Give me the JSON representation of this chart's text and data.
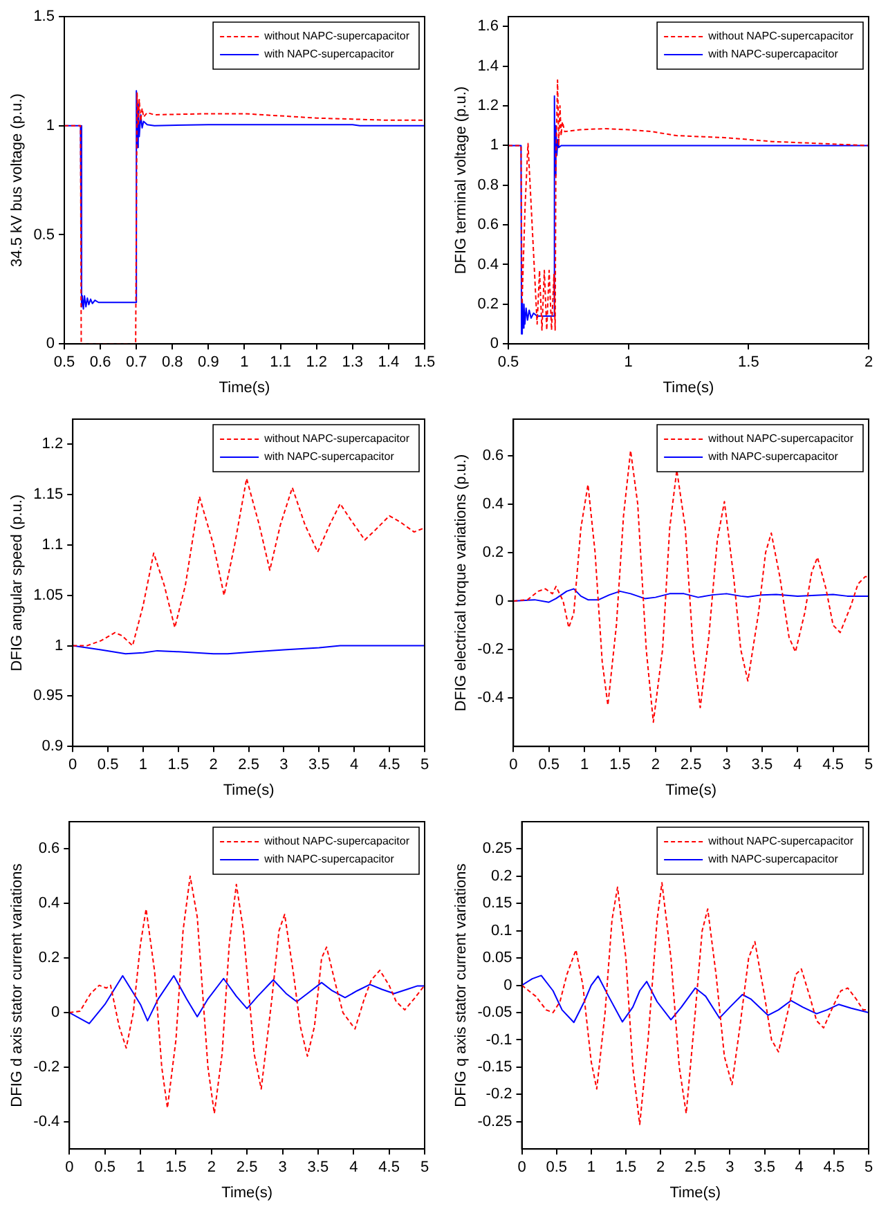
{
  "chart_data": [
    {
      "type": "line",
      "xlabel": "Time(s)",
      "ylabel": "34.5 kV bus voltage (p.u.)",
      "xlim": [
        0.5,
        1.5
      ],
      "xticks": [
        0.5,
        0.6,
        0.7,
        0.8,
        0.9,
        1,
        1.1,
        1.2,
        1.3,
        1.4,
        1.5
      ],
      "ylim": [
        0,
        1.5
      ],
      "yticks": [
        0,
        0.5,
        1,
        1.5
      ],
      "legend": "top right",
      "marker": "none",
      "series": [
        {
          "name": "without NAPC-supercapacitor",
          "color": "#ff0000",
          "line_style": "dashed",
          "x": [
            0.5,
            0.545,
            0.547,
            0.698,
            0.702,
            0.705,
            0.708,
            0.712,
            0.716,
            0.72,
            0.73,
            0.75,
            0.9,
            1.0,
            1.1,
            1.2,
            1.3,
            1.4,
            1.5
          ],
          "values": [
            1,
            1,
            0,
            0,
            1.15,
            1.0,
            1.12,
            1.02,
            1.08,
            1.04,
            1.06,
            1.05,
            1.055,
            1.055,
            1.045,
            1.035,
            1.03,
            1.025,
            1.025
          ]
        },
        {
          "name": "with NAPC-supercapacitor",
          "color": "#0000ff",
          "line_style": "solid",
          "x": [
            0.5,
            0.545,
            0.548,
            0.55,
            0.553,
            0.556,
            0.56,
            0.564,
            0.568,
            0.573,
            0.578,
            0.585,
            0.595,
            0.62,
            0.698,
            0.7,
            0.702,
            0.705,
            0.708,
            0.712,
            0.716,
            0.72,
            0.73,
            0.75,
            0.9,
            1.3,
            1.32,
            1.5
          ],
          "values": [
            1,
            1,
            0.17,
            0.22,
            0.16,
            0.22,
            0.17,
            0.21,
            0.18,
            0.205,
            0.185,
            0.2,
            0.19,
            0.19,
            0.19,
            1.16,
            0.9,
            1.1,
            0.95,
            1.05,
            0.99,
            1.02,
            1.005,
            1.0,
            1.005,
            1.005,
            1.0,
            1.0
          ]
        }
      ]
    },
    {
      "type": "line",
      "xlabel": "Time(s)",
      "ylabel": "DFIG terminal voltage (p.u.)",
      "xlim": [
        0.5,
        2
      ],
      "xticks": [
        0.5,
        1,
        1.5,
        2
      ],
      "ylim": [
        0,
        1.65
      ],
      "yticks": [
        0,
        0.2,
        0.4,
        0.6,
        0.8,
        1,
        1.2,
        1.4,
        1.6
      ],
      "legend": "top right",
      "marker": "none",
      "series": [
        {
          "name": "without NAPC-supercapacitor",
          "color": "#ff0000",
          "line_style": "dashed",
          "x": [
            0.5,
            0.553,
            0.557,
            0.57,
            0.582,
            0.595,
            0.62,
            0.63,
            0.64,
            0.65,
            0.66,
            0.67,
            0.68,
            0.69,
            0.695,
            0.698,
            0.705,
            0.71,
            0.715,
            0.72,
            0.725,
            0.735,
            0.8,
            0.9,
            1.0,
            1.1,
            1.2,
            1.4,
            1.6,
            1.8,
            2.0
          ],
          "values": [
            1,
            1,
            0.2,
            0.7,
            1.01,
            0.7,
            0.1,
            0.37,
            0.07,
            0.37,
            0.07,
            0.37,
            0.07,
            0.35,
            0.07,
            0.9,
            1.33,
            1.0,
            1.2,
            1.05,
            1.12,
            1.07,
            1.08,
            1.085,
            1.08,
            1.07,
            1.05,
            1.04,
            1.02,
            1.01,
            1.0
          ]
        },
        {
          "name": "with NAPC-supercapacitor",
          "color": "#0000ff",
          "line_style": "solid",
          "x": [
            0.5,
            0.553,
            0.555,
            0.558,
            0.561,
            0.565,
            0.569,
            0.574,
            0.58,
            0.587,
            0.595,
            0.605,
            0.62,
            0.69,
            0.692,
            0.695,
            0.698,
            0.702,
            0.706,
            0.71,
            0.72,
            2.0
          ],
          "values": [
            1,
            1,
            0.05,
            0.22,
            0.08,
            0.2,
            0.1,
            0.18,
            0.12,
            0.17,
            0.13,
            0.155,
            0.14,
            0.14,
            1.25,
            0.85,
            1.1,
            0.95,
            1.03,
            0.99,
            1.0,
            1.0
          ]
        }
      ]
    },
    {
      "type": "line",
      "xlabel": "Time(s)",
      "ylabel": "DFIG angular speed (p.u.)",
      "xlim": [
        0,
        5
      ],
      "xticks": [
        0,
        0.5,
        1,
        1.5,
        2,
        2.5,
        3,
        3.5,
        4,
        4.5,
        5
      ],
      "ylim": [
        0.9,
        1.225
      ],
      "yticks": [
        0.9,
        0.95,
        1,
        1.05,
        1.1,
        1.15,
        1.2
      ],
      "legend": "top right",
      "marker": "none",
      "series": [
        {
          "name": "without NAPC-supercapacitor",
          "color": "#ff0000",
          "line_style": "dashed",
          "x": [
            0,
            0.2,
            0.4,
            0.6,
            0.7,
            0.85,
            1.0,
            1.15,
            1.3,
            1.45,
            1.6,
            1.8,
            2.0,
            2.15,
            2.3,
            2.47,
            2.65,
            2.8,
            2.95,
            3.12,
            3.3,
            3.48,
            3.65,
            3.8,
            3.95,
            4.15,
            4.3,
            4.5,
            4.65,
            4.85,
            5
          ],
          "values": [
            1.0,
            1.0,
            1.005,
            1.013,
            1.01,
            1.0,
            1.04,
            1.092,
            1.06,
            1.018,
            1.06,
            1.148,
            1.1,
            1.05,
            1.1,
            1.166,
            1.12,
            1.075,
            1.12,
            1.157,
            1.12,
            1.093,
            1.12,
            1.141,
            1.125,
            1.105,
            1.115,
            1.129,
            1.123,
            1.113,
            1.117
          ]
        },
        {
          "name": "with NAPC-supercapacitor",
          "color": "#0000ff",
          "line_style": "solid",
          "x": [
            0,
            0.4,
            0.75,
            1.0,
            1.2,
            1.5,
            2.0,
            2.2,
            2.6,
            3.0,
            3.5,
            3.8,
            5
          ],
          "values": [
            1,
            0.996,
            0.992,
            0.993,
            0.995,
            0.994,
            0.992,
            0.992,
            0.994,
            0.996,
            0.998,
            1.0,
            1.0
          ]
        }
      ]
    },
    {
      "type": "line",
      "xlabel": "Time(s)",
      "ylabel": "DFIG electrical torque variations (p.u.)",
      "xlim": [
        0,
        5
      ],
      "xticks": [
        0,
        0.5,
        1,
        1.5,
        2,
        2.5,
        3,
        3.5,
        4,
        4.5,
        5
      ],
      "ylim": [
        -0.6,
        0.75
      ],
      "yticks": [
        -0.4,
        -0.2,
        0,
        0.2,
        0.4,
        0.6
      ],
      "legend": "top right",
      "marker": "none",
      "series": [
        {
          "name": "without NAPC-supercapacitor",
          "color": "#ff0000",
          "line_style": "dashed",
          "x": [
            0,
            0.2,
            0.35,
            0.45,
            0.55,
            0.6,
            0.7,
            0.78,
            0.85,
            0.95,
            1.05,
            1.15,
            1.25,
            1.33,
            1.45,
            1.55,
            1.65,
            1.75,
            1.87,
            1.97,
            2.1,
            2.2,
            2.3,
            2.42,
            2.53,
            2.63,
            2.75,
            2.87,
            2.97,
            3.1,
            3.2,
            3.3,
            3.45,
            3.55,
            3.63,
            3.75,
            3.88,
            3.97,
            4.1,
            4.2,
            4.28,
            4.4,
            4.5,
            4.6,
            4.75,
            4.85,
            4.95,
            5
          ],
          "values": [
            0,
            0.005,
            0.04,
            0.05,
            0.03,
            0.06,
            0.0,
            -0.11,
            -0.05,
            0.3,
            0.48,
            0.2,
            -0.25,
            -0.43,
            -0.1,
            0.35,
            0.62,
            0.4,
            -0.2,
            -0.5,
            -0.2,
            0.3,
            0.54,
            0.3,
            -0.2,
            -0.44,
            -0.15,
            0.25,
            0.41,
            0.1,
            -0.2,
            -0.33,
            -0.05,
            0.2,
            0.28,
            0.1,
            -0.15,
            -0.21,
            -0.05,
            0.12,
            0.18,
            0.05,
            -0.1,
            -0.13,
            -0.02,
            0.07,
            0.1,
            0.1
          ]
        },
        {
          "name": "with NAPC-supercapacitor",
          "color": "#0000ff",
          "line_style": "solid",
          "x": [
            0,
            0.3,
            0.5,
            0.6,
            0.75,
            0.85,
            0.95,
            1.05,
            1.2,
            1.35,
            1.5,
            1.65,
            1.85,
            2.0,
            2.2,
            2.4,
            2.6,
            2.8,
            3.0,
            3.2,
            3.3,
            3.5,
            3.7,
            4.0,
            4.5,
            4.7,
            5
          ],
          "values": [
            0,
            0.005,
            -0.005,
            0.01,
            0.04,
            0.05,
            0.02,
            0.005,
            0.005,
            0.025,
            0.04,
            0.03,
            0.01,
            0.015,
            0.03,
            0.03,
            0.015,
            0.025,
            0.03,
            0.02,
            0.017,
            0.025,
            0.027,
            0.02,
            0.027,
            0.02,
            0.02
          ]
        }
      ]
    },
    {
      "type": "line",
      "xlabel": "Time(s)",
      "ylabel": "DFIG d axis stator current variations",
      "xlim": [
        0,
        5
      ],
      "xticks": [
        0,
        0.5,
        1,
        1.5,
        2,
        2.5,
        3,
        3.5,
        4,
        4.5,
        5
      ],
      "ylim": [
        -0.5,
        0.7
      ],
      "yticks": [
        -0.4,
        -0.2,
        0,
        0.2,
        0.4,
        0.6
      ],
      "legend": "top right",
      "marker": "none",
      "series": [
        {
          "name": "without NAPC-supercapacitor",
          "color": "#ff0000",
          "line_style": "dashed",
          "x": [
            0,
            0.15,
            0.3,
            0.42,
            0.52,
            0.58,
            0.7,
            0.8,
            0.9,
            1.0,
            1.08,
            1.2,
            1.3,
            1.38,
            1.5,
            1.6,
            1.7,
            1.8,
            1.95,
            2.04,
            2.15,
            2.25,
            2.35,
            2.45,
            2.6,
            2.7,
            2.85,
            2.95,
            3.03,
            3.15,
            3.25,
            3.35,
            3.45,
            3.55,
            3.62,
            3.75,
            3.85,
            4.02,
            4.15,
            4.25,
            4.37,
            4.5,
            4.6,
            4.72,
            4.85,
            5
          ],
          "values": [
            0,
            0.005,
            0.07,
            0.1,
            0.09,
            0.1,
            -0.05,
            -0.13,
            0.0,
            0.25,
            0.38,
            0.15,
            -0.2,
            -0.35,
            -0.1,
            0.3,
            0.5,
            0.35,
            -0.2,
            -0.37,
            -0.15,
            0.25,
            0.47,
            0.3,
            -0.15,
            -0.28,
            0.05,
            0.3,
            0.36,
            0.15,
            -0.05,
            -0.16,
            -0.05,
            0.2,
            0.24,
            0.1,
            0.0,
            -0.06,
            0.05,
            0.12,
            0.155,
            0.1,
            0.04,
            0.01,
            0.05,
            0.1
          ]
        },
        {
          "name": "with NAPC-supercapacitor",
          "color": "#0000ff",
          "line_style": "solid",
          "x": [
            0,
            0.28,
            0.5,
            0.75,
            1.0,
            1.1,
            1.25,
            1.47,
            1.65,
            1.8,
            1.95,
            2.17,
            2.35,
            2.5,
            2.65,
            2.87,
            3.05,
            3.2,
            3.35,
            3.55,
            3.7,
            3.88,
            4.05,
            4.23,
            4.4,
            4.57,
            4.75,
            4.9,
            5
          ],
          "values": [
            0,
            -0.04,
            0.03,
            0.135,
            0.03,
            -0.03,
            0.05,
            0.135,
            0.05,
            -0.015,
            0.05,
            0.125,
            0.06,
            0.015,
            0.06,
            0.12,
            0.07,
            0.04,
            0.07,
            0.11,
            0.08,
            0.055,
            0.08,
            0.103,
            0.085,
            0.07,
            0.085,
            0.098,
            0.098
          ]
        }
      ]
    },
    {
      "type": "line",
      "xlabel": "Time(s)",
      "ylabel": "DFIG q axis stator current variations",
      "xlim": [
        0,
        5
      ],
      "xticks": [
        0,
        0.5,
        1,
        1.5,
        2,
        2.5,
        3,
        3.5,
        4,
        4.5,
        5
      ],
      "ylim": [
        -0.3,
        0.3
      ],
      "yticks": [
        -0.25,
        -0.2,
        -0.15,
        -0.1,
        -0.05,
        0,
        0.05,
        0.1,
        0.15,
        0.2,
        0.25
      ],
      "legend": "top right",
      "marker": "none",
      "series": [
        {
          "name": "without NAPC-supercapacitor",
          "color": "#ff0000",
          "line_style": "dashed",
          "x": [
            0,
            0.2,
            0.35,
            0.45,
            0.55,
            0.65,
            0.78,
            0.88,
            1.0,
            1.08,
            1.2,
            1.3,
            1.38,
            1.5,
            1.6,
            1.7,
            1.82,
            1.95,
            2.02,
            2.15,
            2.27,
            2.37,
            2.5,
            2.6,
            2.68,
            2.8,
            2.92,
            3.03,
            3.15,
            3.27,
            3.36,
            3.5,
            3.6,
            3.7,
            3.85,
            3.95,
            4.03,
            4.15,
            4.25,
            4.35,
            4.5,
            4.6,
            4.7,
            4.82,
            4.92,
            5
          ],
          "values": [
            0,
            -0.02,
            -0.045,
            -0.05,
            -0.03,
            0.02,
            0.065,
            0.0,
            -0.14,
            -0.19,
            -0.05,
            0.12,
            0.18,
            0.05,
            -0.15,
            -0.255,
            -0.1,
            0.12,
            0.188,
            0.05,
            -0.15,
            -0.235,
            -0.05,
            0.1,
            0.14,
            0.02,
            -0.13,
            -0.182,
            -0.07,
            0.05,
            0.08,
            -0.02,
            -0.1,
            -0.122,
            -0.04,
            0.02,
            0.03,
            -0.02,
            -0.065,
            -0.078,
            -0.035,
            -0.01,
            -0.005,
            -0.025,
            -0.045,
            -0.045
          ]
        },
        {
          "name": "with NAPC-supercapacitor",
          "color": "#0000ff",
          "line_style": "solid",
          "x": [
            0,
            0.15,
            0.28,
            0.45,
            0.58,
            0.75,
            0.9,
            1.0,
            1.1,
            1.25,
            1.45,
            1.6,
            1.7,
            1.8,
            1.95,
            2.15,
            2.3,
            2.5,
            2.65,
            2.85,
            3.0,
            3.18,
            3.3,
            3.55,
            3.7,
            3.88,
            4.05,
            4.25,
            4.4,
            4.57,
            4.75,
            5
          ],
          "values": [
            0,
            0.012,
            0.018,
            -0.01,
            -0.045,
            -0.068,
            -0.03,
            0.0,
            0.017,
            -0.02,
            -0.067,
            -0.04,
            -0.01,
            0.007,
            -0.03,
            -0.063,
            -0.04,
            -0.005,
            -0.02,
            -0.06,
            -0.04,
            -0.017,
            -0.025,
            -0.055,
            -0.045,
            -0.028,
            -0.04,
            -0.052,
            -0.045,
            -0.035,
            -0.042,
            -0.05
          ]
        }
      ]
    }
  ]
}
